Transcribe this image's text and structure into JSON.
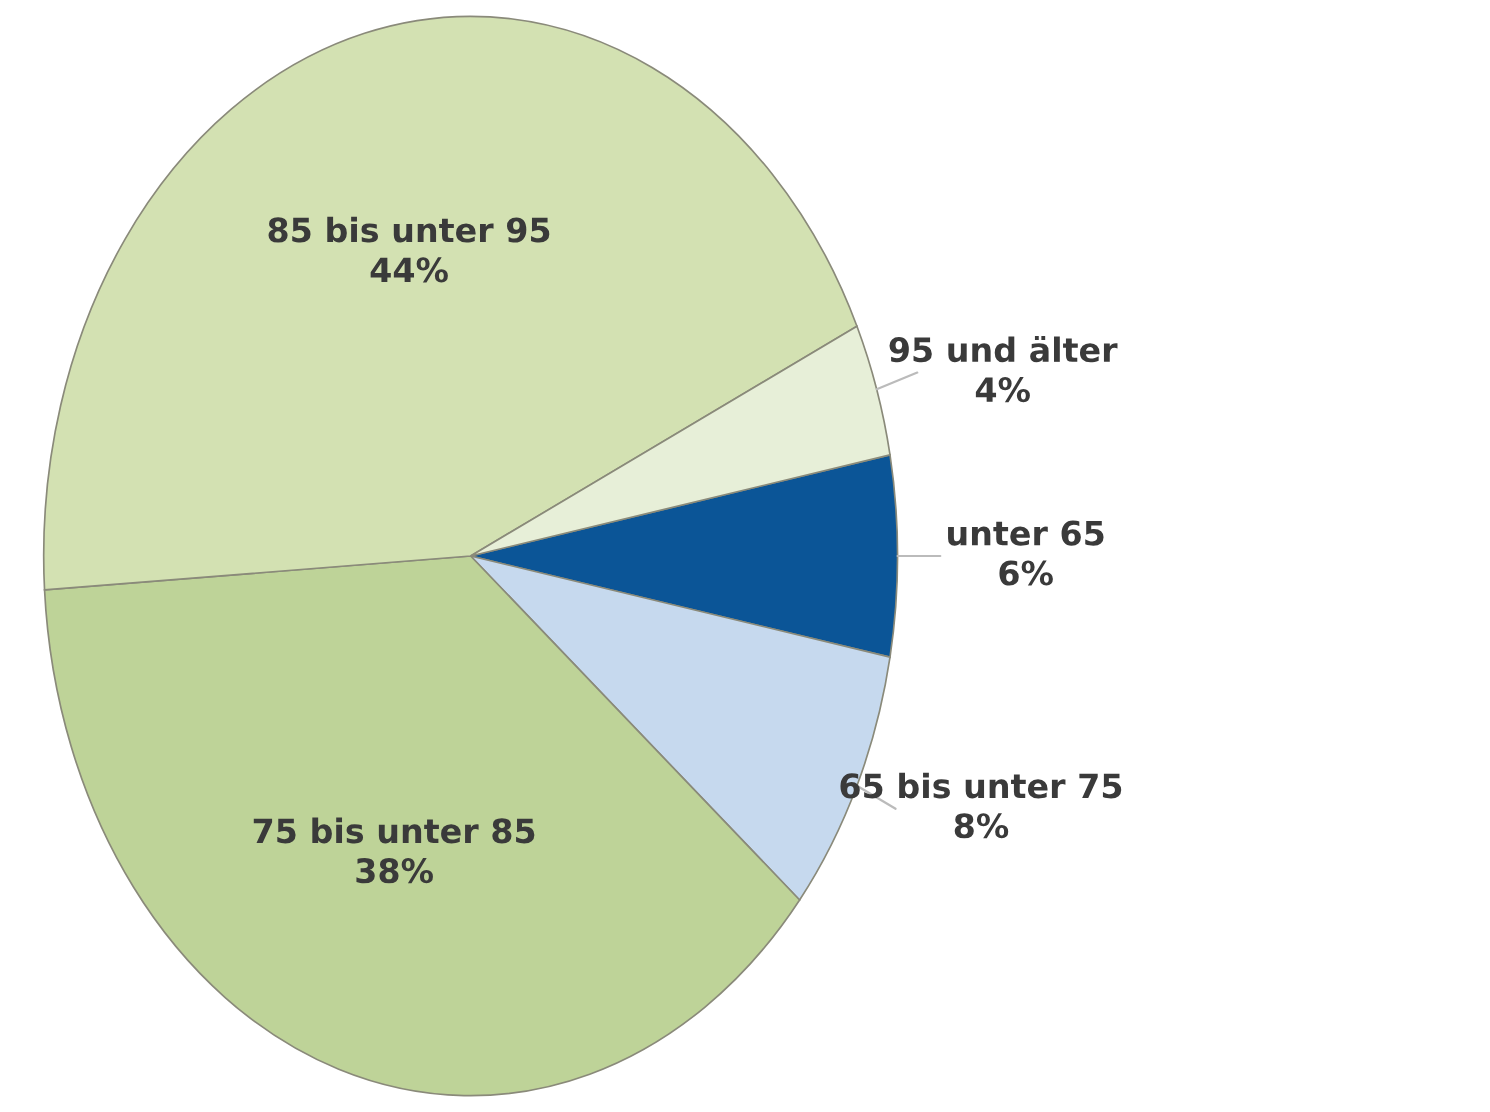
{
  "chart_data": {
    "type": "pie",
    "categories": [
      "unter 65",
      "65 bis unter 75",
      "75 bis unter 85",
      "85 bis unter 95",
      "95 und älter"
    ],
    "values": [
      6,
      8,
      38,
      44,
      4
    ],
    "value_labels": [
      "6%",
      "8%",
      "38%",
      "44%",
      "4%"
    ],
    "colors": [
      "#0b5597",
      "#c6d9ee",
      "#bed398",
      "#d3e1b2",
      "#e7efd8"
    ]
  }
}
